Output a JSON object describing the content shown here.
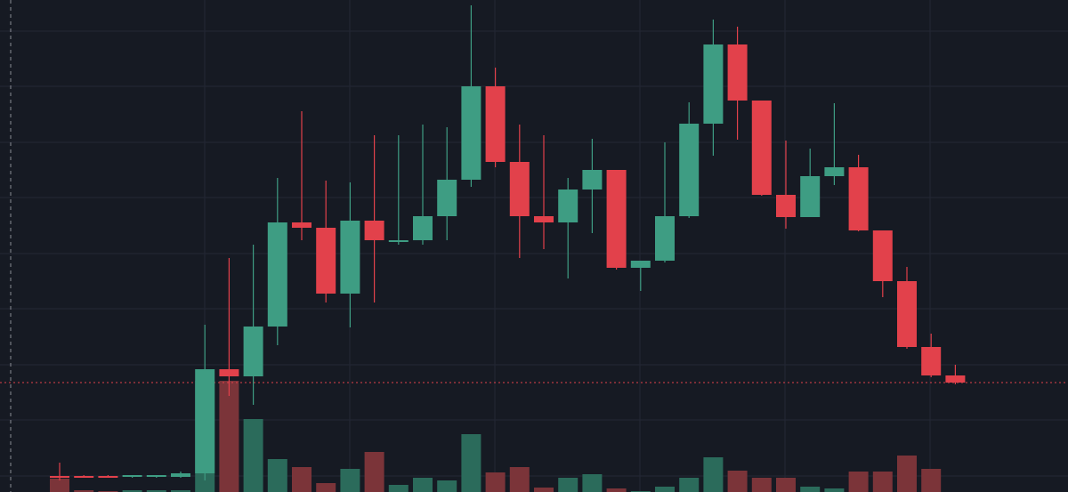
{
  "chart_data": {
    "type": "candlestick",
    "open": [
      18,
      18,
      18,
      17,
      17,
      17,
      21,
      138,
      130,
      186,
      303,
      297,
      223,
      305,
      281,
      283,
      310,
      351,
      456,
      371,
      310,
      303,
      340,
      362,
      252,
      260,
      310,
      414,
      503,
      440,
      334,
      309,
      355,
      365,
      294,
      237,
      163,
      131
    ],
    "high": [
      33,
      19,
      19,
      19,
      19,
      23,
      188,
      263,
      278,
      353,
      428,
      350,
      348,
      401,
      401,
      413,
      410,
      547,
      477,
      413,
      401,
      353,
      397,
      362,
      260,
      393,
      438,
      531,
      523,
      440,
      395,
      386,
      437,
      379,
      294,
      253,
      178,
      143
    ],
    "low": [
      13,
      16,
      16,
      16,
      16,
      16,
      13,
      108,
      98,
      165,
      283,
      213,
      185,
      213,
      278,
      278,
      283,
      343,
      365,
      263,
      273,
      240,
      291,
      250,
      226,
      258,
      308,
      378,
      396,
      333,
      296,
      309,
      345,
      293,
      219,
      161,
      129,
      121
    ],
    "close": [
      16,
      17,
      17,
      19,
      19,
      21,
      138,
      130,
      186,
      303,
      297,
      223,
      305,
      283,
      283,
      310,
      351,
      456,
      371,
      310,
      303,
      340,
      362,
      252,
      260,
      310,
      414,
      503,
      440,
      334,
      309,
      355,
      365,
      294,
      237,
      163,
      131,
      123
    ],
    "volume": [
      15,
      2,
      1,
      2,
      2,
      2,
      125,
      125,
      82,
      37,
      28,
      10,
      26,
      45,
      8,
      16,
      13,
      65,
      22,
      28,
      5,
      16,
      20,
      4,
      1,
      6,
      16,
      39,
      24,
      16,
      16,
      6,
      4,
      23,
      23,
      41,
      26,
      0
    ],
    "up_color": "#3e9d83",
    "down_color": "#e2414b",
    "volume_up_color": "#2b6b5b",
    "volume_down_color": "#7b3439",
    "ylim": [
      0,
      553
    ],
    "y2lim": [
      0,
      553
    ]
  }
}
